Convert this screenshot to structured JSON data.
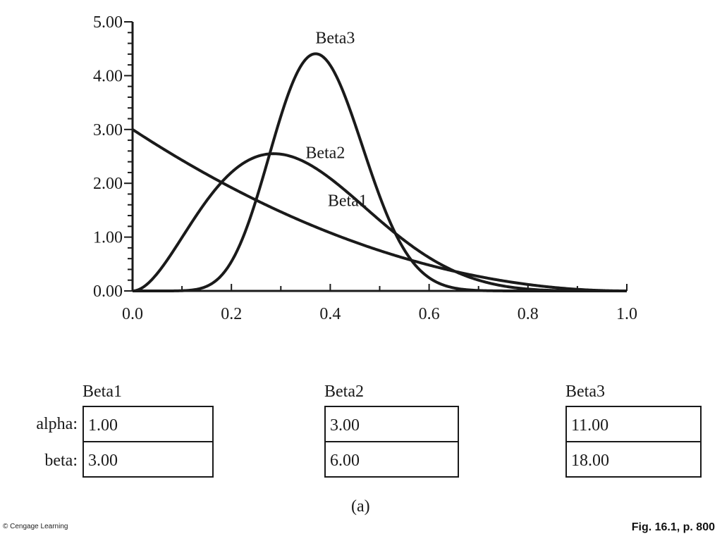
{
  "chart_data": {
    "type": "line",
    "xlim": [
      0.0,
      1.0
    ],
    "ylim": [
      0.0,
      5.0
    ],
    "x_ticks": [
      "0.0",
      "0.2",
      "0.4",
      "0.6",
      "0.8",
      "1.0"
    ],
    "y_ticks": [
      "0.00",
      "1.00",
      "2.00",
      "3.00",
      "4.00",
      "5.00"
    ],
    "grid": false,
    "series": [
      {
        "name": "Beta1",
        "distribution": "beta",
        "alpha": 1.0,
        "beta": 3.0,
        "x": [
          0.0,
          0.1,
          0.2,
          0.3,
          0.4,
          0.5,
          0.6,
          0.7,
          0.8,
          0.9,
          1.0
        ],
        "y": [
          3.0,
          2.43,
          1.92,
          1.47,
          1.08,
          0.75,
          0.48,
          0.27,
          0.12,
          0.03,
          0.0
        ]
      },
      {
        "name": "Beta2",
        "distribution": "beta",
        "alpha": 3.0,
        "beta": 6.0,
        "x": [
          0.0,
          0.1,
          0.2,
          0.3,
          0.4,
          0.5,
          0.6,
          0.7,
          0.8,
          0.9,
          1.0
        ],
        "y": [
          0.0,
          0.83,
          2.05,
          2.54,
          2.18,
          1.37,
          0.65,
          0.22,
          0.04,
          0.0,
          0.0
        ]
      },
      {
        "name": "Beta3",
        "distribution": "beta",
        "alpha": 11.0,
        "beta": 18.0,
        "x": [
          0.0,
          0.1,
          0.2,
          0.3,
          0.35,
          0.4,
          0.5,
          0.6,
          0.7,
          0.8,
          1.0
        ],
        "y": [
          0.0,
          0.0,
          0.4,
          3.4,
          4.3,
          3.9,
          1.3,
          0.1,
          0.0,
          0.0,
          0.0
        ]
      }
    ]
  },
  "params": {
    "row_labels": [
      "alpha:",
      "beta:"
    ],
    "groups": [
      {
        "title": "Beta1",
        "alpha": "1.00",
        "beta": "3.00"
      },
      {
        "title": "Beta2",
        "alpha": "3.00",
        "beta": "6.00"
      },
      {
        "title": "Beta3",
        "alpha": "11.00",
        "beta": "18.00"
      }
    ]
  },
  "caption": "(a)",
  "credit": "© Cengage Learning",
  "figure_ref": "Fig. 16.1, p. 800"
}
